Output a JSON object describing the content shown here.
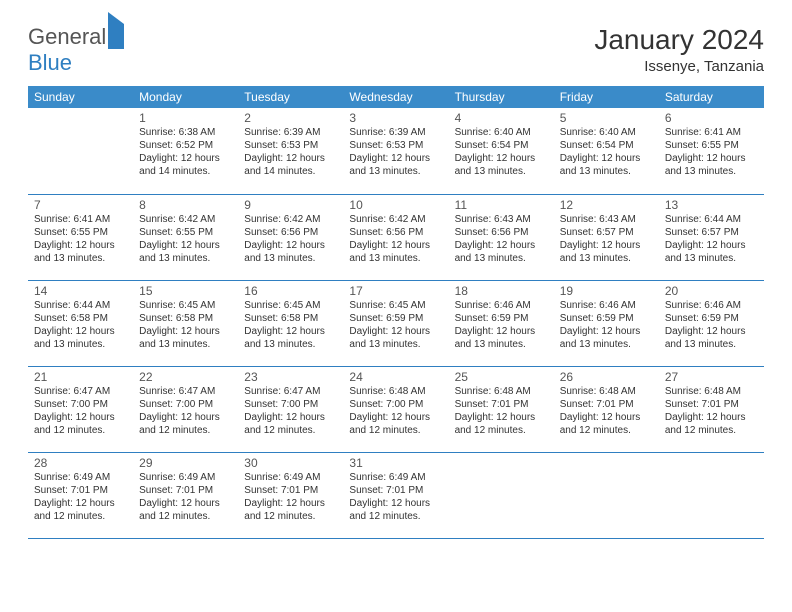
{
  "logo": {
    "part1": "General",
    "part2": "Blue"
  },
  "title": "January 2024",
  "location": "Issenye, Tanzania",
  "daynames": [
    "Sunday",
    "Monday",
    "Tuesday",
    "Wednesday",
    "Thursday",
    "Friday",
    "Saturday"
  ],
  "colors": {
    "header_bg": "#3a8bc9",
    "border": "#2f7fc1"
  },
  "weeks": [
    [
      {
        "n": "",
        "sr": "",
        "ss": "",
        "dl": ""
      },
      {
        "n": "1",
        "sr": "Sunrise: 6:38 AM",
        "ss": "Sunset: 6:52 PM",
        "dl": "Daylight: 12 hours and 14 minutes."
      },
      {
        "n": "2",
        "sr": "Sunrise: 6:39 AM",
        "ss": "Sunset: 6:53 PM",
        "dl": "Daylight: 12 hours and 14 minutes."
      },
      {
        "n": "3",
        "sr": "Sunrise: 6:39 AM",
        "ss": "Sunset: 6:53 PM",
        "dl": "Daylight: 12 hours and 13 minutes."
      },
      {
        "n": "4",
        "sr": "Sunrise: 6:40 AM",
        "ss": "Sunset: 6:54 PM",
        "dl": "Daylight: 12 hours and 13 minutes."
      },
      {
        "n": "5",
        "sr": "Sunrise: 6:40 AM",
        "ss": "Sunset: 6:54 PM",
        "dl": "Daylight: 12 hours and 13 minutes."
      },
      {
        "n": "6",
        "sr": "Sunrise: 6:41 AM",
        "ss": "Sunset: 6:55 PM",
        "dl": "Daylight: 12 hours and 13 minutes."
      }
    ],
    [
      {
        "n": "7",
        "sr": "Sunrise: 6:41 AM",
        "ss": "Sunset: 6:55 PM",
        "dl": "Daylight: 12 hours and 13 minutes."
      },
      {
        "n": "8",
        "sr": "Sunrise: 6:42 AM",
        "ss": "Sunset: 6:55 PM",
        "dl": "Daylight: 12 hours and 13 minutes."
      },
      {
        "n": "9",
        "sr": "Sunrise: 6:42 AM",
        "ss": "Sunset: 6:56 PM",
        "dl": "Daylight: 12 hours and 13 minutes."
      },
      {
        "n": "10",
        "sr": "Sunrise: 6:42 AM",
        "ss": "Sunset: 6:56 PM",
        "dl": "Daylight: 12 hours and 13 minutes."
      },
      {
        "n": "11",
        "sr": "Sunrise: 6:43 AM",
        "ss": "Sunset: 6:56 PM",
        "dl": "Daylight: 12 hours and 13 minutes."
      },
      {
        "n": "12",
        "sr": "Sunrise: 6:43 AM",
        "ss": "Sunset: 6:57 PM",
        "dl": "Daylight: 12 hours and 13 minutes."
      },
      {
        "n": "13",
        "sr": "Sunrise: 6:44 AM",
        "ss": "Sunset: 6:57 PM",
        "dl": "Daylight: 12 hours and 13 minutes."
      }
    ],
    [
      {
        "n": "14",
        "sr": "Sunrise: 6:44 AM",
        "ss": "Sunset: 6:58 PM",
        "dl": "Daylight: 12 hours and 13 minutes."
      },
      {
        "n": "15",
        "sr": "Sunrise: 6:45 AM",
        "ss": "Sunset: 6:58 PM",
        "dl": "Daylight: 12 hours and 13 minutes."
      },
      {
        "n": "16",
        "sr": "Sunrise: 6:45 AM",
        "ss": "Sunset: 6:58 PM",
        "dl": "Daylight: 12 hours and 13 minutes."
      },
      {
        "n": "17",
        "sr": "Sunrise: 6:45 AM",
        "ss": "Sunset: 6:59 PM",
        "dl": "Daylight: 12 hours and 13 minutes."
      },
      {
        "n": "18",
        "sr": "Sunrise: 6:46 AM",
        "ss": "Sunset: 6:59 PM",
        "dl": "Daylight: 12 hours and 13 minutes."
      },
      {
        "n": "19",
        "sr": "Sunrise: 6:46 AM",
        "ss": "Sunset: 6:59 PM",
        "dl": "Daylight: 12 hours and 13 minutes."
      },
      {
        "n": "20",
        "sr": "Sunrise: 6:46 AM",
        "ss": "Sunset: 6:59 PM",
        "dl": "Daylight: 12 hours and 13 minutes."
      }
    ],
    [
      {
        "n": "21",
        "sr": "Sunrise: 6:47 AM",
        "ss": "Sunset: 7:00 PM",
        "dl": "Daylight: 12 hours and 12 minutes."
      },
      {
        "n": "22",
        "sr": "Sunrise: 6:47 AM",
        "ss": "Sunset: 7:00 PM",
        "dl": "Daylight: 12 hours and 12 minutes."
      },
      {
        "n": "23",
        "sr": "Sunrise: 6:47 AM",
        "ss": "Sunset: 7:00 PM",
        "dl": "Daylight: 12 hours and 12 minutes."
      },
      {
        "n": "24",
        "sr": "Sunrise: 6:48 AM",
        "ss": "Sunset: 7:00 PM",
        "dl": "Daylight: 12 hours and 12 minutes."
      },
      {
        "n": "25",
        "sr": "Sunrise: 6:48 AM",
        "ss": "Sunset: 7:01 PM",
        "dl": "Daylight: 12 hours and 12 minutes."
      },
      {
        "n": "26",
        "sr": "Sunrise: 6:48 AM",
        "ss": "Sunset: 7:01 PM",
        "dl": "Daylight: 12 hours and 12 minutes."
      },
      {
        "n": "27",
        "sr": "Sunrise: 6:48 AM",
        "ss": "Sunset: 7:01 PM",
        "dl": "Daylight: 12 hours and 12 minutes."
      }
    ],
    [
      {
        "n": "28",
        "sr": "Sunrise: 6:49 AM",
        "ss": "Sunset: 7:01 PM",
        "dl": "Daylight: 12 hours and 12 minutes."
      },
      {
        "n": "29",
        "sr": "Sunrise: 6:49 AM",
        "ss": "Sunset: 7:01 PM",
        "dl": "Daylight: 12 hours and 12 minutes."
      },
      {
        "n": "30",
        "sr": "Sunrise: 6:49 AM",
        "ss": "Sunset: 7:01 PM",
        "dl": "Daylight: 12 hours and 12 minutes."
      },
      {
        "n": "31",
        "sr": "Sunrise: 6:49 AM",
        "ss": "Sunset: 7:01 PM",
        "dl": "Daylight: 12 hours and 12 minutes."
      },
      {
        "n": "",
        "sr": "",
        "ss": "",
        "dl": ""
      },
      {
        "n": "",
        "sr": "",
        "ss": "",
        "dl": ""
      },
      {
        "n": "",
        "sr": "",
        "ss": "",
        "dl": ""
      }
    ]
  ]
}
